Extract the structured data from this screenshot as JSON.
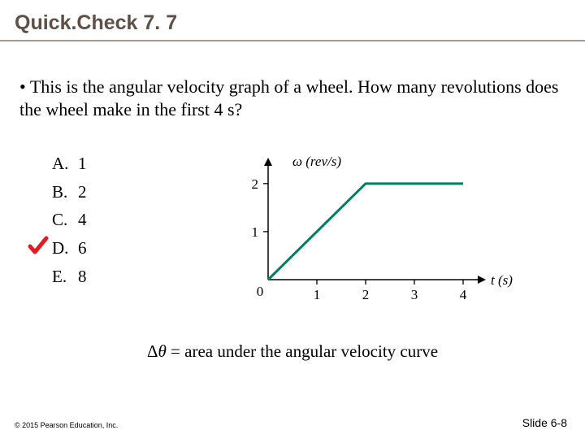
{
  "title": {
    "text": "Quick.Check 7. 7",
    "color": "#5d5046",
    "fontsize": 25,
    "divider_color": "#a8998c"
  },
  "question": {
    "bullet": "•",
    "text": "This is the angular velocity graph of a wheel. How many revolutions does the wheel make in the first 4 s?"
  },
  "choices": [
    {
      "letter": "A.",
      "text": "1",
      "correct": false
    },
    {
      "letter": "B.",
      "text": "2",
      "correct": false
    },
    {
      "letter": "C.",
      "text": "4",
      "correct": false
    },
    {
      "letter": "D.",
      "text": "6",
      "correct": true
    },
    {
      "letter": "E.",
      "text": "8",
      "correct": false
    }
  ],
  "checkmark": {
    "color": "#e31b23"
  },
  "hint": {
    "delta": "Δ",
    "theta": "θ ",
    "text": "= area under the angular velocity curve"
  },
  "graph": {
    "type": "line",
    "y_label": "ω (rev/s)",
    "y_label_style": "italic",
    "x_label": "t (s)",
    "x_label_style": "italic",
    "xlim": [
      0,
      4
    ],
    "ylim": [
      0,
      2.2
    ],
    "xticks": [
      0,
      1,
      2,
      3,
      4
    ],
    "yticks": [
      1,
      2
    ],
    "origin_label": "0",
    "data_x": [
      0,
      2,
      4
    ],
    "data_y": [
      0,
      2,
      2
    ],
    "axis_color": "#000000",
    "tick_color": "#000000",
    "line_color": "#008060",
    "line_width": 3,
    "axis_width": 1.5,
    "label_fontsize": 17,
    "tick_fontsize": 17,
    "background_color": "#ffffff"
  },
  "footer": {
    "copyright": "© 2015 Pearson Education, Inc.",
    "slide": "Slide 6-8"
  }
}
